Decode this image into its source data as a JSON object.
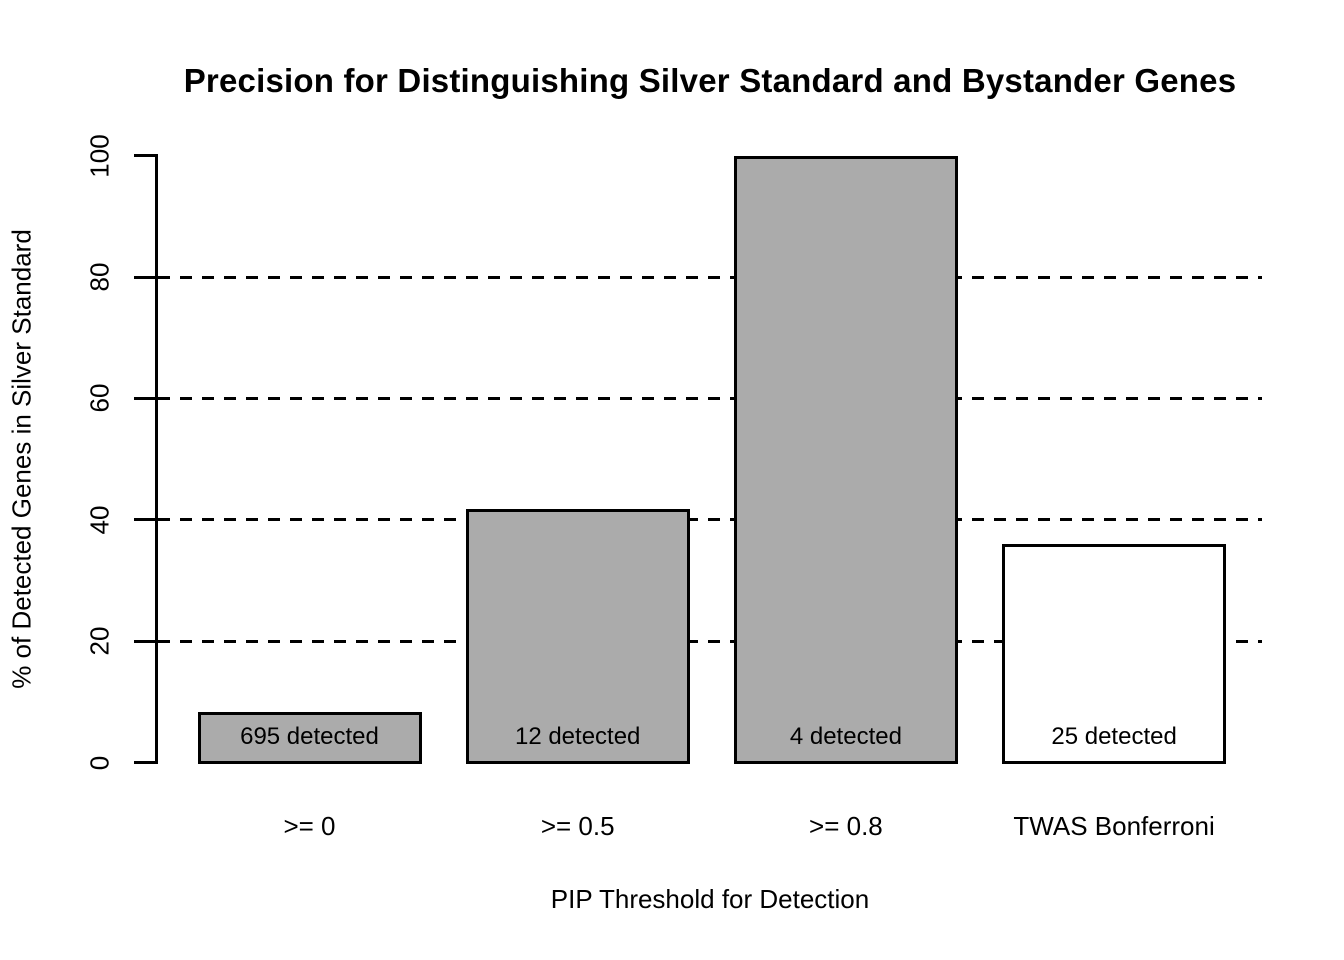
{
  "chart_data": {
    "type": "bar",
    "title": "Precision for Distinguishing Silver Standard and Bystander Genes",
    "xlabel": "PIP Threshold for Detection",
    "ylabel": "% of Detected Genes in Silver Standard",
    "ylim": [
      0,
      100
    ],
    "yticks": [
      0,
      20,
      40,
      60,
      80,
      100
    ],
    "gridlines": [
      20,
      40,
      60,
      80
    ],
    "grid_style": "dashed",
    "legend": "none",
    "categories": [
      ">= 0",
      ">= 0.5",
      ">= 0.8",
      "TWAS Bonferroni"
    ],
    "values": [
      8.4,
      41.7,
      100,
      36
    ],
    "bar_labels": [
      "695 detected",
      "12 detected",
      "4 detected",
      "25 detected"
    ],
    "bar_colors": [
      "#ABABAB",
      "#ABABAB",
      "#ABABAB",
      "#FFFFFF"
    ],
    "bar_border_color": "#000000",
    "grid_color": "#000000",
    "text_color": "#000000",
    "background_color": "#FFFFFF"
  }
}
